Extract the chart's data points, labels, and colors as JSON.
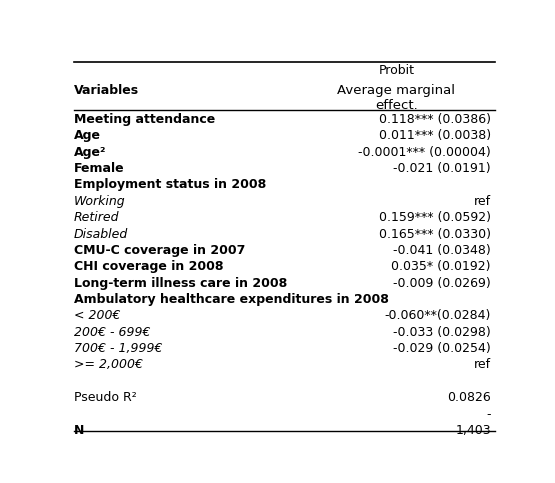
{
  "title_top": "Probit",
  "col_header": "Average marginal\neffect.",
  "rows": [
    {
      "label": "Meeting attendance",
      "value": "0.118*** (0.0386)",
      "bold": true,
      "italic": false
    },
    {
      "label": "Age",
      "value": "0.011*** (0.0038)",
      "bold": true,
      "italic": false
    },
    {
      "label": "Age²",
      "value": "-0.0001*** (0.00004)",
      "bold": true,
      "italic": false
    },
    {
      "label": "Female",
      "value": "-0.021 (0.0191)",
      "bold": true,
      "italic": false
    },
    {
      "label": "Employment status in 2008",
      "value": "",
      "bold": true,
      "italic": false
    },
    {
      "label": "Working",
      "value": "ref",
      "bold": false,
      "italic": true
    },
    {
      "label": "Retired",
      "value": "0.159*** (0.0592)",
      "bold": false,
      "italic": true
    },
    {
      "label": "Disabled",
      "value": "0.165*** (0.0330)",
      "bold": false,
      "italic": true
    },
    {
      "label": "CMU-C coverage in 2007",
      "value": "-0.041 (0.0348)",
      "bold": true,
      "italic": false
    },
    {
      "label": "CHI coverage in 2008",
      "value": "0.035* (0.0192)",
      "bold": true,
      "italic": false
    },
    {
      "label": "Long-term illness care in 2008",
      "value": "-0.009 (0.0269)",
      "bold": true,
      "italic": false
    },
    {
      "label": "Ambulatory healthcare expenditures in 2008",
      "value": "",
      "bold": true,
      "italic": false
    },
    {
      "label": "< 200€",
      "value": "-0.060**(0.0284)",
      "bold": false,
      "italic": true
    },
    {
      "label": "200€ - 699€",
      "value": "-0.033 (0.0298)",
      "bold": false,
      "italic": true
    },
    {
      "label": "700€ - 1,999€",
      "value": "-0.029 (0.0254)",
      "bold": false,
      "italic": true
    },
    {
      ">= 2,000€": ">= 2,000€",
      "label": ">= 2,000€",
      "value": "ref",
      "bold": false,
      "italic": true
    },
    {
      "label": "",
      "value": "",
      "bold": false,
      "italic": false
    },
    {
      "label": "Pseudo R²",
      "value": "0.0826",
      "bold": false,
      "italic": false
    },
    {
      "label": "",
      "value": "-",
      "bold": false,
      "italic": false
    },
    {
      "label": "N",
      "value": "1,403",
      "bold": true,
      "italic": false
    }
  ],
  "bg_color": "#ffffff",
  "text_color": "#000000",
  "font_size": 9.0,
  "header_font_size": 9.5
}
